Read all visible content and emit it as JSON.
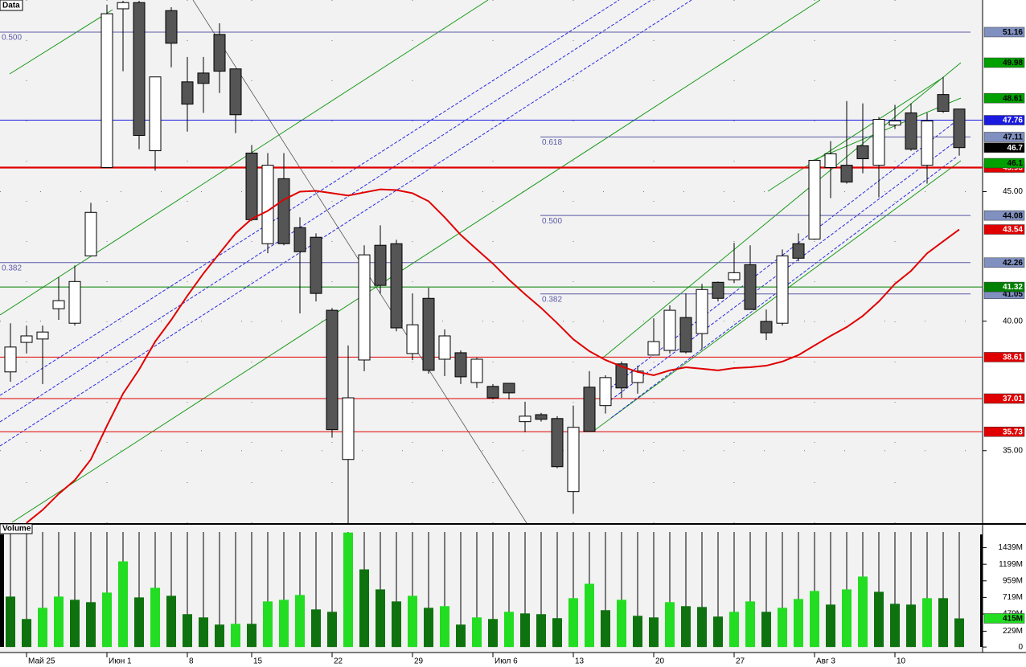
{
  "chart_data": [
    {
      "type": "candlestick",
      "title": "Data",
      "categories": [
        null,
        "Май 25",
        null,
        null,
        null,
        null,
        "Июн 1",
        null,
        null,
        null,
        null,
        "8",
        null,
        null,
        null,
        "15",
        null,
        null,
        null,
        null,
        "22",
        null,
        null,
        null,
        null,
        "29",
        null,
        null,
        null,
        null,
        "Июл 6",
        null,
        null,
        null,
        null,
        "13",
        null,
        null,
        null,
        null,
        "20",
        null,
        null,
        null,
        null,
        "27",
        null,
        null,
        null,
        null,
        "Авг 3",
        null,
        null,
        null,
        null,
        "10",
        null,
        null,
        null,
        null
      ],
      "open": [
        38.04,
        39.18,
        39.31,
        40.48,
        39.92,
        42.52,
        45.93,
        52.06,
        52.3,
        46.58,
        51.99,
        49.24,
        49.58,
        51.07,
        49.74,
        46.49,
        42.99,
        45.5,
        43.61,
        43.24,
        40.42,
        34.66,
        38.5,
        42.93,
        42.99,
        38.75,
        40.88,
        38.53,
        38.78,
        37.63,
        37.48,
        37.6,
        36.12,
        36.39,
        36.24,
        33.42,
        37.45,
        36.74,
        38.35,
        37.63,
        38.69,
        38.87,
        40.14,
        39.52,
        41.5,
        41.6,
        42.18,
        39.99,
        39.92,
        42.99,
        43.17,
        45.93,
        46.02,
        46.77,
        46.02,
        47.57,
        48.04,
        46.02,
        48.75,
        48.19
      ],
      "high": [
        39.92,
        39.83,
        39.83,
        41.69,
        42.15,
        44.57,
        52.22,
        52.37,
        52.37,
        49.43,
        52.12,
        50.2,
        50.2,
        51.5,
        49.74,
        46.8,
        46.49,
        46.49,
        44.01,
        43.39,
        40.51,
        39.06,
        42.93,
        43.7,
        43.14,
        41.07,
        41.29,
        39.68,
        38.87,
        38.59,
        37.57,
        37.6,
        36.89,
        36.46,
        36.33,
        36.74,
        38.07,
        37.91,
        38.44,
        38.28,
        40.11,
        40.61,
        41.07,
        41.44,
        41.53,
        43.02,
        42.93,
        40.45,
        42.77,
        43.39,
        46.21,
        46.95,
        48.5,
        48.41,
        47.88,
        48.35,
        48.41,
        48.04,
        49.43,
        48.19
      ],
      "low": [
        37.66,
        38.75,
        37.57,
        40.05,
        39.83,
        42.52,
        45.93,
        49.65,
        46.64,
        45.81,
        49.8,
        47.32,
        48.04,
        48.81,
        47.26,
        43.86,
        42.62,
        42.93,
        40.3,
        40.76,
        35.5,
        32.2,
        38.07,
        41.07,
        39.61,
        38.5,
        37.97,
        37.88,
        37.57,
        37.42,
        36.98,
        36.98,
        35.71,
        36.12,
        34.32,
        32.56,
        35.74,
        36.43,
        37.04,
        37.2,
        38.69,
        38.75,
        38.75,
        38.9,
        40.76,
        41.47,
        40.45,
        39.27,
        39.83,
        42.31,
        43.14,
        44.75,
        45.31,
        45.71,
        44.78,
        47.42,
        46.58,
        45.31,
        48.04,
        46.39
      ],
      "close": [
        39.0,
        39.43,
        39.58,
        40.79,
        41.53,
        44.2,
        51.87,
        52.3,
        47.17,
        49.43,
        50.73,
        48.38,
        49.18,
        49.65,
        47.97,
        43.92,
        46.02,
        42.99,
        42.68,
        41.07,
        35.81,
        37.04,
        42.56,
        41.38,
        39.74,
        39.86,
        38.1,
        39.43,
        37.85,
        38.53,
        37.04,
        37.23,
        36.33,
        36.21,
        34.38,
        35.9,
        35.74,
        37.82,
        37.42,
        38.07,
        39.21,
        40.42,
        38.81,
        41.22,
        40.88,
        41.87,
        40.45,
        39.55,
        42.52,
        42.43,
        46.21,
        46.46,
        45.37,
        46.27,
        47.79,
        47.73,
        46.64,
        47.73,
        48.1,
        46.7
      ],
      "up_color": "#ffffff",
      "down_color": "#555555",
      "close_label_color": "#000000",
      "ylim": [
        32.2,
        52.4
      ],
      "yticks": [
        {
          "value": 35,
          "label": "35.00"
        },
        {
          "value": 40,
          "label": "40.00"
        },
        {
          "value": 45,
          "label": "45.00"
        }
      ],
      "grid": true,
      "moving_average": {
        "color": "#e00000",
        "values": [
          null,
          32.21,
          32.71,
          33.33,
          33.86,
          34.66,
          35.96,
          37.2,
          38.13,
          39.21,
          40.05,
          40.98,
          41.84,
          42.62,
          43.39,
          43.95,
          44.26,
          44.69,
          45.0,
          45.03,
          44.94,
          44.85,
          44.97,
          45.09,
          45.06,
          44.94,
          44.63,
          44.01,
          43.33,
          42.77,
          42.22,
          41.6,
          41.04,
          40.51,
          39.92,
          39.3,
          38.84,
          38.5,
          38.25,
          38.04,
          37.91,
          38.1,
          38.22,
          38.16,
          38.1,
          38.19,
          38.22,
          38.28,
          38.44,
          38.69,
          39.06,
          39.43,
          39.77,
          40.2,
          40.76,
          41.44,
          41.94,
          42.62,
          43.08,
          43.54
        ]
      },
      "fib_color": "#5a5aa8",
      "fibonacci": [
        {
          "levels": [
            {
              "ratio": "0.500",
              "value": 51.16
            },
            {
              "ratio": "0.382",
              "value": 42.26
            }
          ]
        },
        {
          "levels": [
            {
              "ratio": "0.618",
              "value": 47.11
            },
            {
              "ratio": "0.500",
              "value": 44.08
            },
            {
              "ratio": "0.382",
              "value": 41.05
            }
          ]
        }
      ],
      "levels": [
        {
          "value": 49.98,
          "color": "#00a000",
          "line": false
        },
        {
          "value": 48.61,
          "color": "#00a000",
          "line": false
        },
        {
          "value": 47.76,
          "color": "#1a1ae0",
          "line": true
        },
        {
          "value": 45.93,
          "color": "#e00000",
          "line": true,
          "style": "thick"
        },
        {
          "value": 46.1,
          "color": "#00a000",
          "line": false
        },
        {
          "value": 41.32,
          "color": "#008000",
          "line": true
        },
        {
          "value": 38.61,
          "color": "#e00000",
          "line": true
        },
        {
          "value": 37.01,
          "color": "#e00000",
          "line": true
        },
        {
          "value": 35.73,
          "color": "#e00000",
          "line": true
        }
      ]
    },
    {
      "type": "bar",
      "title": "Volume",
      "values": [
        731,
        406,
        568,
        731,
        684,
        650,
        789,
        1241,
        719,
        858,
        742,
        476,
        429,
        325,
        336,
        336,
        661,
        684,
        754,
        545,
        510,
        1659,
        1125,
        835,
        661,
        742,
        568,
        592,
        325,
        429,
        406,
        510,
        487,
        476,
        418,
        708,
        916,
        534,
        684,
        452,
        429,
        650,
        592,
        580,
        441,
        510,
        661,
        510,
        568,
        696,
        812,
        615,
        835,
        1021,
        800,
        626,
        615,
        708,
        708,
        415
      ],
      "current_value_label": "415M",
      "up_color": "#22dd22",
      "down_color": "#0e720e",
      "ylim": [
        -80,
        1690
      ],
      "yticks": [
        {
          "value": 0,
          "label": "0"
        },
        {
          "value": 229,
          "label": "229M"
        },
        {
          "value": 479,
          "label": "479M"
        },
        {
          "value": 719,
          "label": "719M"
        },
        {
          "value": 959,
          "label": "959M"
        },
        {
          "value": 1199,
          "label": "1199M"
        },
        {
          "value": 1439,
          "label": "1439M"
        }
      ]
    }
  ]
}
